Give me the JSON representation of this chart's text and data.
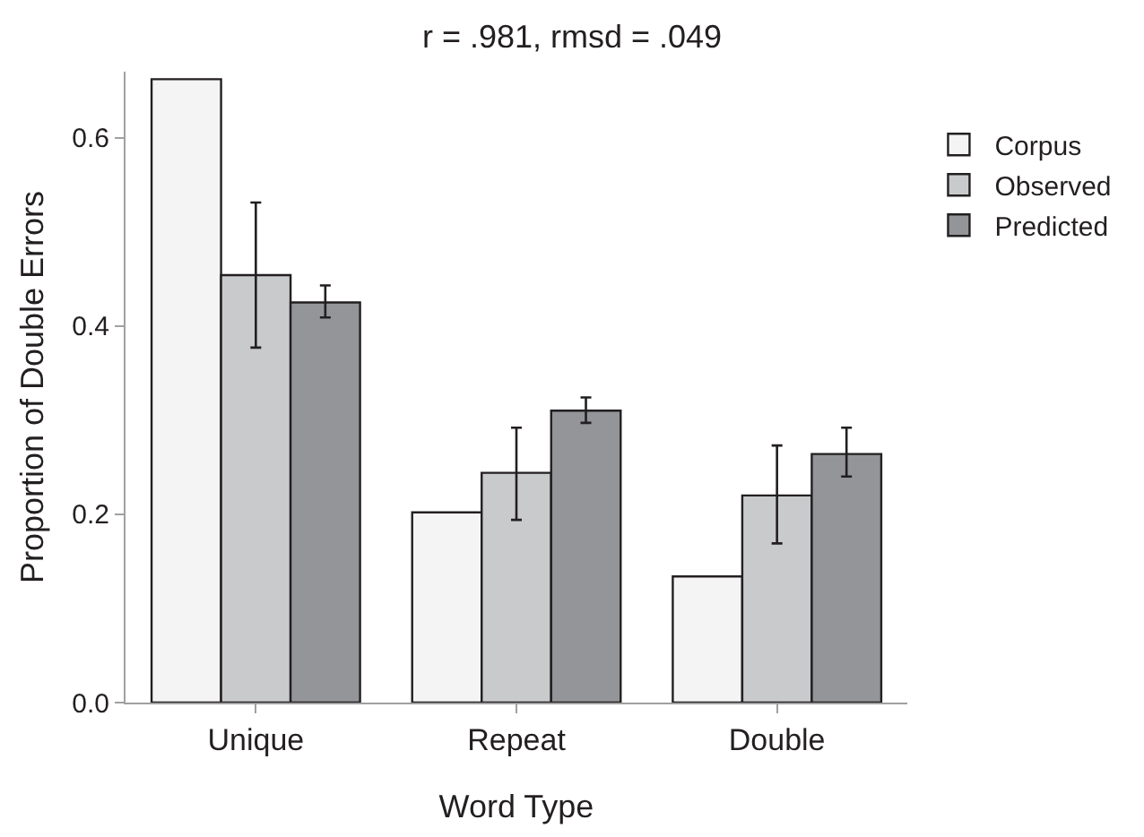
{
  "chart_data": {
    "type": "bar",
    "title": "r = .981, rmsd = .049",
    "xlabel": "Word Type",
    "ylabel": "Proportion of Double Errors",
    "categories": [
      "Unique",
      "Repeat",
      "Double"
    ],
    "series": [
      {
        "name": "Corpus",
        "color": "#f4f4f4",
        "values": [
          0.662,
          0.202,
          0.134
        ]
      },
      {
        "name": "Observed",
        "color": "#c9cacc",
        "values": [
          0.454,
          0.244,
          0.22
        ],
        "errors": [
          [
            0.377,
            0.531
          ],
          [
            0.194,
            0.292
          ],
          [
            0.169,
            0.273
          ]
        ]
      },
      {
        "name": "Predicted",
        "color": "#939598",
        "values": [
          0.425,
          0.31,
          0.264
        ],
        "errors": [
          [
            0.409,
            0.443
          ],
          [
            0.297,
            0.324
          ],
          [
            0.24,
            0.292
          ]
        ]
      }
    ],
    "ylim": [
      0,
      0.67
    ],
    "yticks": [
      {
        "value": 0,
        "label": "0.0"
      },
      {
        "value": 0.2,
        "label": "0.2"
      },
      {
        "value": 0.4,
        "label": "0.4"
      },
      {
        "value": 0.6,
        "label": "0.6"
      }
    ],
    "grid": false,
    "legend": "right"
  }
}
